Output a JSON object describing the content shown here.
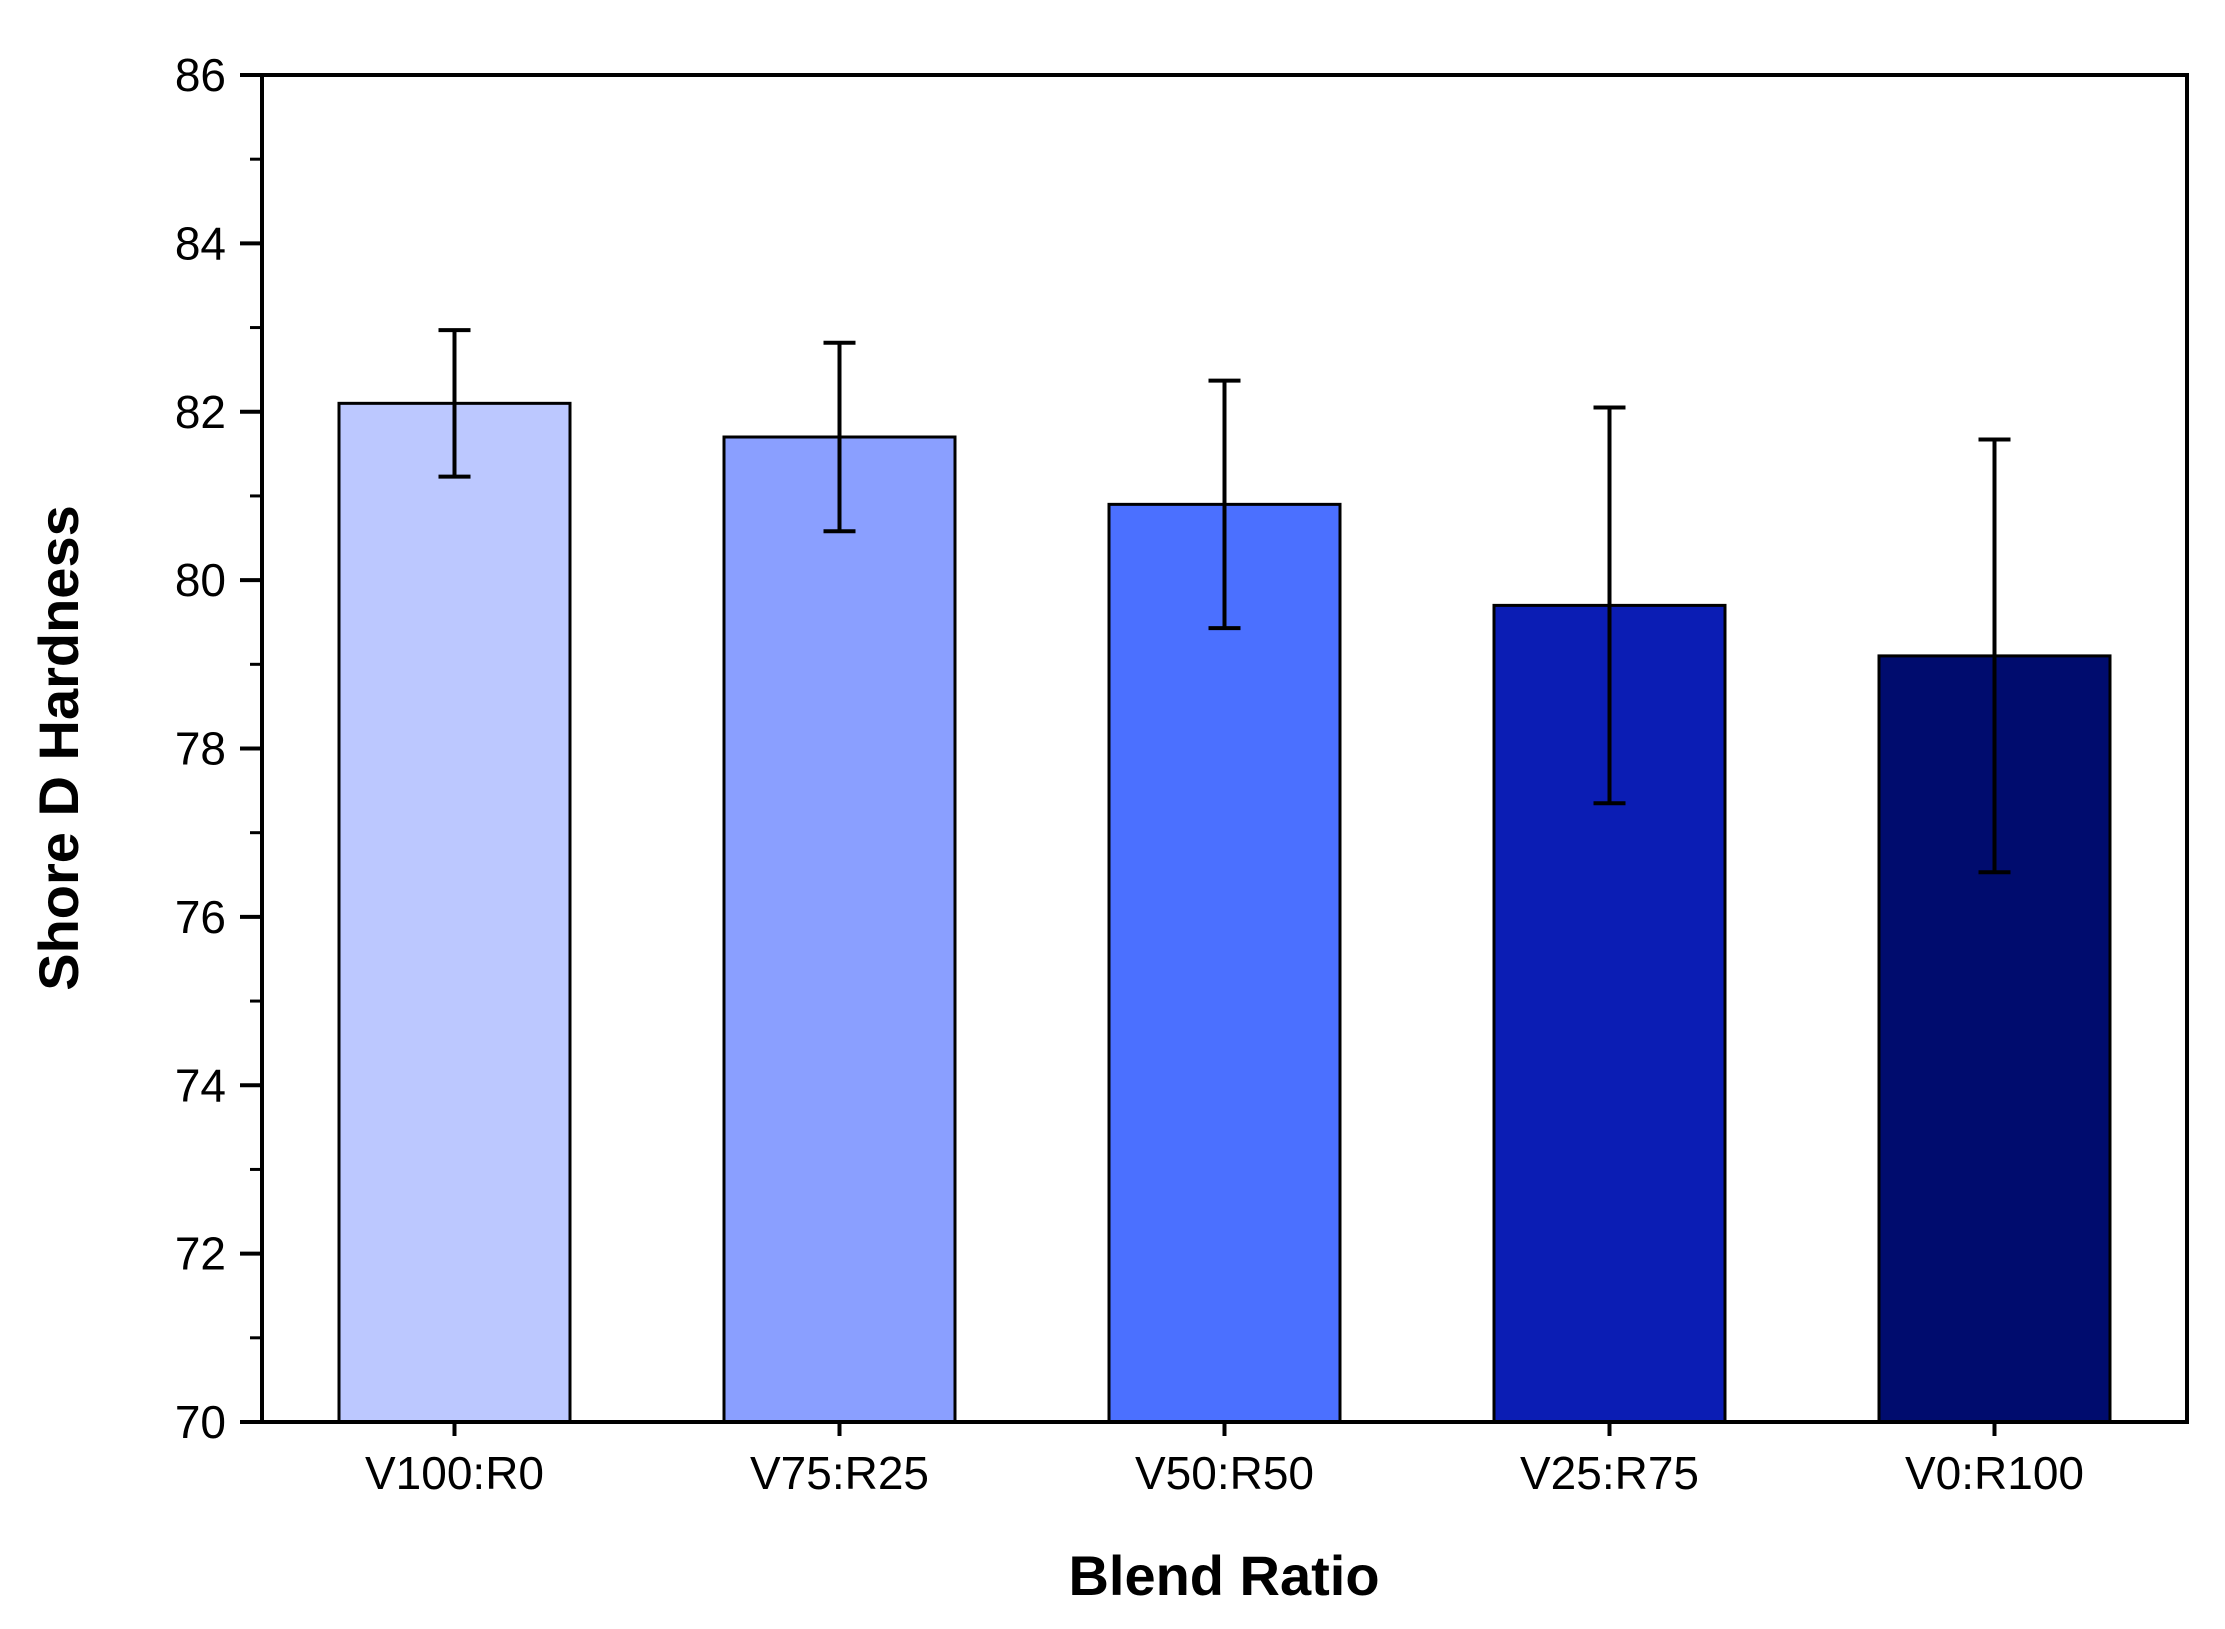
{
  "chart_data": {
    "type": "bar",
    "title": "",
    "xlabel": "Blend Ratio",
    "ylabel": "Shore D Hardness",
    "ylim": [
      70,
      86
    ],
    "yticks": [
      70,
      72,
      74,
      76,
      78,
      80,
      82,
      84,
      86
    ],
    "categories": [
      "V100:R0",
      "V75:R25",
      "V50:R50",
      "V25:R75",
      "V0:R100"
    ],
    "values": [
      82.1,
      81.7,
      80.9,
      79.7,
      79.1
    ],
    "errors": [
      0.87,
      1.12,
      1.47,
      2.35,
      2.57
    ],
    "colors": [
      "#BCC8FF",
      "#8A9FFF",
      "#4B70FF",
      "#0B1DB4",
      "#000C6E"
    ],
    "grid": false,
    "legend": "none"
  }
}
